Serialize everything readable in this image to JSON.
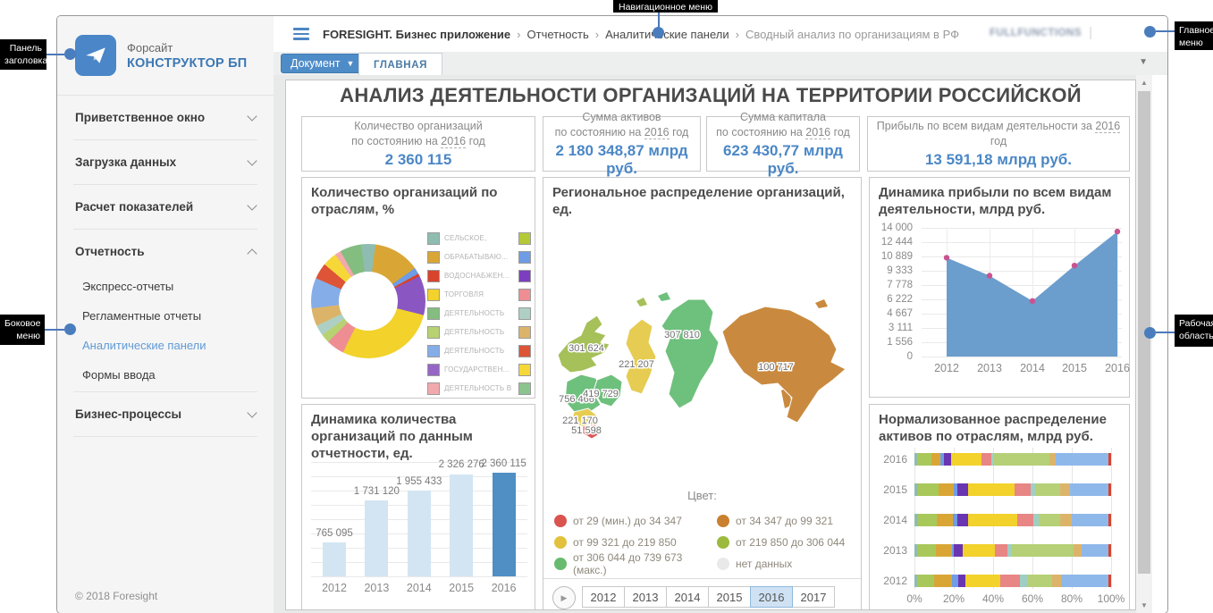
{
  "annotations": {
    "header_panel": "Панель заголовка",
    "nav_menu": "Навигационное меню",
    "main_menu": "Главное меню",
    "side_menu": "Боковое меню",
    "work_area": "Рабочая область"
  },
  "sidebar": {
    "logo_top": "Форсайт",
    "logo_bottom": "КОНСТРУКТОР БП",
    "items": [
      {
        "label": "Приветственное окно",
        "state": "collapsed"
      },
      {
        "label": "Загрузка данных",
        "state": "collapsed"
      },
      {
        "label": "Расчет показателей",
        "state": "collapsed"
      },
      {
        "label": "Отчетность",
        "state": "expanded",
        "children": [
          "Экспресс-отчеты",
          "Регламентные отчеты",
          "Аналитические панели",
          "Формы ввода"
        ],
        "selected_child": "Аналитические панели"
      },
      {
        "label": "Бизнес-процессы",
        "state": "collapsed"
      }
    ],
    "footer": "© 2018 Foresight"
  },
  "header": {
    "breadcrumb": [
      {
        "text": "FORESIGHT. Бизнес приложение",
        "style": "bold"
      },
      {
        "text": "Отчетность",
        "style": "normal"
      },
      {
        "text": "Аналитические панели",
        "style": "normal"
      },
      {
        "text": "Сводный анализ по организациям в РФ",
        "style": "muted"
      }
    ],
    "user": "FULLFUNCTIONS"
  },
  "tabs": {
    "document_button": "Документ",
    "main_tab": "ГЛАВНАЯ"
  },
  "dashboard": {
    "title": "АНАЛИЗ ДЕЯТЕЛЬНОСТИ ОРГАНИЗАЦИЙ НА ТЕРРИТОРИИ РОССИЙСКОЙ",
    "kpis": [
      {
        "pre": "Количество организаций\nпо состоянию на",
        "year": "2016",
        "post": "год",
        "value": "2 360 115"
      },
      {
        "pre": "Сумма активов\nпо состоянию на",
        "year": "2016",
        "post": "год",
        "value": "2 180 348,87 млрд руб."
      },
      {
        "pre": "Сумма капитала\nпо состоянию на",
        "year": "2016",
        "post": "год",
        "value": "623 430,77 млрд руб."
      },
      {
        "pre": "Прибыль по всем видам деятельности за",
        "year": "2016",
        "post": "год",
        "value": "13 591,18 млрд руб."
      }
    ]
  },
  "chart_data": [
    {
      "id": "org_by_industry",
      "type": "pie",
      "title": "Количество организаций по отраслям, %",
      "slices": [
        {
          "color": "#8fbcb0",
          "value": 2
        },
        {
          "color": "#d9a636",
          "value": 13
        },
        {
          "color": "#6e9ce5",
          "value": 1.8
        },
        {
          "color": "#d8432c",
          "value": 0.8
        },
        {
          "color": "#8a57c2",
          "value": 11
        },
        {
          "color": "#f2d22b",
          "value": 28
        },
        {
          "color": "#ee8e93",
          "value": 5
        },
        {
          "color": "#b8d272",
          "value": 2.5
        },
        {
          "color": "#aed0c4",
          "value": 3
        },
        {
          "color": "#dcb469",
          "value": 5
        },
        {
          "color": "#85ade8",
          "value": 8.5
        },
        {
          "color": "#dd5436",
          "value": 4.5
        },
        {
          "color": "#f5d838",
          "value": 4
        },
        {
          "color": "#f2a9ad",
          "value": 1.7
        },
        {
          "color": "#83bd80",
          "value": 6
        },
        {
          "color": "#8fbcb0",
          "value": 2
        }
      ],
      "legend": [
        {
          "color": "#8fbcb0",
          "label": "СЕЛЬСКОЕ,"
        },
        {
          "color": "#d9a636",
          "label": "ОБРАБАТЫВАЮ..."
        },
        {
          "color": "#d8432c",
          "label": "ВОДОСНАБЖЕН..."
        },
        {
          "color": "#f2d22b",
          "label": "ТОРГОВЛЯ"
        },
        {
          "color": "#83bd80",
          "label": "ДЕЯТЕЛЬНОСТЬ"
        },
        {
          "color": "#b8d272",
          "label": "ДЕЯТЕЛЬНОСТЬ"
        },
        {
          "color": "#85ade8",
          "label": "ДЕЯТЕЛЬНОСТЬ"
        },
        {
          "color": "#9666c6",
          "label": "ГОСУДАРСТВЕН..."
        },
        {
          "color": "#f2a9ad",
          "label": "ДЕЯТЕЛЬНОСТЬ В"
        }
      ],
      "legend_right_colors": [
        "#b5c937",
        "#6e9ce5",
        "#7b3fc0",
        "#ee8e93",
        "#aed0c4",
        "#dcb469",
        "#dd5436",
        "#f5d838",
        "#8cc48f"
      ]
    },
    {
      "id": "org_dynamics",
      "type": "bar",
      "title": "Динамика количества организаций по данным отчетности, ед.",
      "categories": [
        "2012",
        "2013",
        "2014",
        "2015",
        "2016"
      ],
      "values": [
        765095,
        1731120,
        1955433,
        2326276,
        2360115
      ],
      "value_labels": [
        "765 095",
        "1 731 120",
        "1 955 433",
        "2 326 276",
        "2 360 115"
      ],
      "highlight_index": 4,
      "ylim": [
        0,
        2600000
      ],
      "bar_color": "#d3e5f2",
      "highlight_color": "#4f8fc4"
    },
    {
      "id": "regional_map",
      "type": "map",
      "title": "Региональное распределение организаций, ед.",
      "regions": [
        {
          "value": "301 624",
          "color": "#a6c05a",
          "shape": "northwest"
        },
        {
          "value": "221 207",
          "color": "#e6cc52",
          "shape": "ural"
        },
        {
          "value": "307 810",
          "color": "#6ec07d",
          "shape": "siberia"
        },
        {
          "value": "100 717",
          "color": "#c98a3f",
          "shape": "fareast"
        },
        {
          "value": "756 466",
          "color": "#6ec07d",
          "shape": "central"
        },
        {
          "value": "419 729",
          "color": "#6ec07d",
          "shape": "volga"
        },
        {
          "value": "221 170",
          "color": "#e6cc52",
          "shape": "south"
        },
        {
          "value": "51 598",
          "color": "#d95757",
          "shape": "caucasus"
        }
      ],
      "legend_title": "Цвет:",
      "legend": [
        {
          "color": "#d9534f",
          "label": "от 29 (мин.) до 34 347"
        },
        {
          "color": "#c9802f",
          "label": "от 34 347 до 99 321"
        },
        {
          "color": "#e2c23c",
          "label": "от 99 321 до 219 850"
        },
        {
          "color": "#9cba3e",
          "label": "от 219 850 до 306 044"
        },
        {
          "color": "#68bb6e",
          "label": "от 306 044 до 739 673 (макс.)"
        },
        {
          "color": "#e9e9e9",
          "label": "нет данных"
        }
      ],
      "timeline": {
        "years": [
          "2012",
          "2013",
          "2014",
          "2015",
          "2016",
          "2017"
        ],
        "selected": "2016"
      }
    },
    {
      "id": "profit_dynamics",
      "type": "area",
      "title": "Динамика прибыли по всем видам деятельности, млрд руб.",
      "x": [
        "2012",
        "2013",
        "2014",
        "2015",
        "2016"
      ],
      "values": [
        10750,
        8800,
        6050,
        9900,
        13600
      ],
      "ylim": [
        0,
        14000
      ],
      "yticks": [
        "14 000",
        "12 444",
        "10 889",
        "9 333",
        "7 778",
        "6 222",
        "4 667",
        "3 111",
        "1 556",
        "0"
      ],
      "area_color": "#6b9dcd",
      "dot_color": "#c9538f"
    },
    {
      "id": "assets_distribution",
      "type": "stacked_bar_h",
      "title": "Нормализованное распределение активов по отраслям, млрд руб.",
      "categories": [
        "2016",
        "2015",
        "2014",
        "2013",
        "2012"
      ],
      "xticks": [
        "0%",
        "20%",
        "40%",
        "60%",
        "80%",
        "100%"
      ],
      "segment_colors": [
        "#8fbcb0",
        "#a9c85a",
        "#d9a636",
        "#6e9ce5",
        "#6a35b0",
        "#f2d22b",
        "#e88585",
        "#9fcfc4",
        "#b5d077",
        "#dcb469",
        "#8fb8ea",
        "#d8432c"
      ],
      "rows": [
        [
          1.5,
          7,
          4.5,
          2,
          3.5,
          15.5,
          5,
          1.5,
          28,
          3.5,
          26.5,
          1.5
        ],
        [
          2,
          10.5,
          7.5,
          2,
          5.5,
          23.5,
          8,
          2.5,
          12.5,
          5,
          19.5,
          1.5
        ],
        [
          2,
          9.5,
          8,
          2.5,
          5.5,
          25,
          8,
          2.5,
          11,
          6,
          18.5,
          1.5
        ],
        [
          1.5,
          9.5,
          8,
          1,
          4.5,
          16.5,
          6.5,
          2,
          31.5,
          4,
          13.5,
          1.5
        ],
        [
          1.5,
          8.5,
          9,
          3.5,
          3.5,
          17.5,
          10,
          4,
          12.5,
          4.5,
          24,
          1.5
        ]
      ]
    }
  ]
}
